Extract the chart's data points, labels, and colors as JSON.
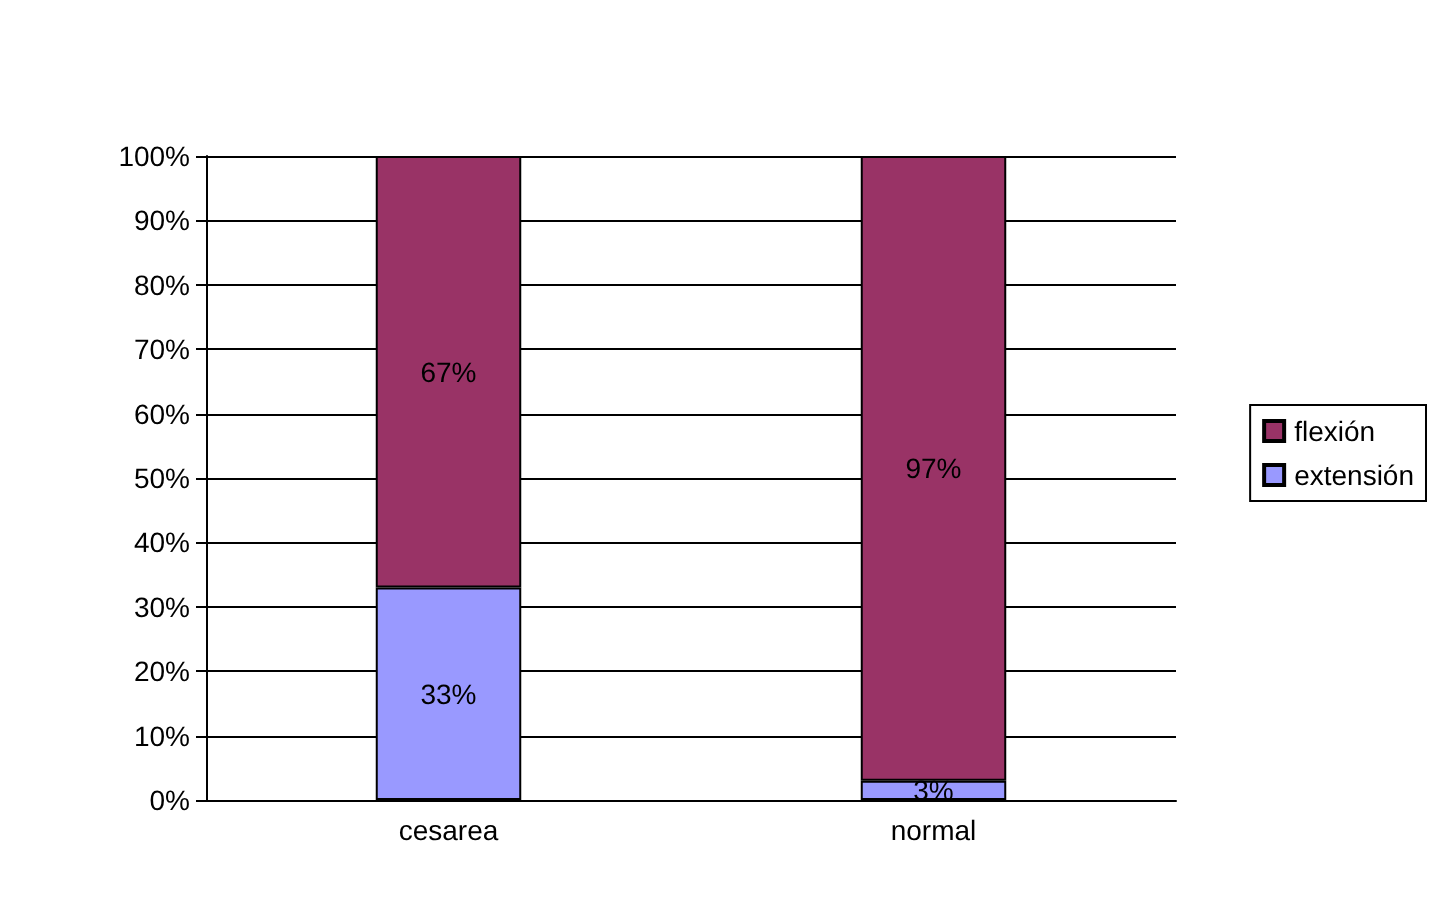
{
  "chart_data": {
    "type": "bar",
    "stacked": true,
    "categories": [
      "cesarea",
      "normal"
    ],
    "series": [
      {
        "name": "extensión",
        "color": "#9999ff",
        "values": [
          33,
          3
        ],
        "value_labels": [
          "33%",
          "3%"
        ]
      },
      {
        "name": "flexión",
        "color": "#993366",
        "values": [
          67,
          97
        ],
        "value_labels": [
          "67%",
          "97%"
        ]
      }
    ],
    "ylim": [
      0,
      100
    ],
    "yticks": [
      {
        "value": 0,
        "label": "0%"
      },
      {
        "value": 10,
        "label": "10%"
      },
      {
        "value": 20,
        "label": "20%"
      },
      {
        "value": 30,
        "label": "30%"
      },
      {
        "value": 40,
        "label": "40%"
      },
      {
        "value": 50,
        "label": "50%"
      },
      {
        "value": 60,
        "label": "60%"
      },
      {
        "value": 70,
        "label": "70%"
      },
      {
        "value": 80,
        "label": "80%"
      },
      {
        "value": 90,
        "label": "90%"
      },
      {
        "value": 100,
        "label": "100%"
      }
    ],
    "grid": "y",
    "legend": "right"
  }
}
